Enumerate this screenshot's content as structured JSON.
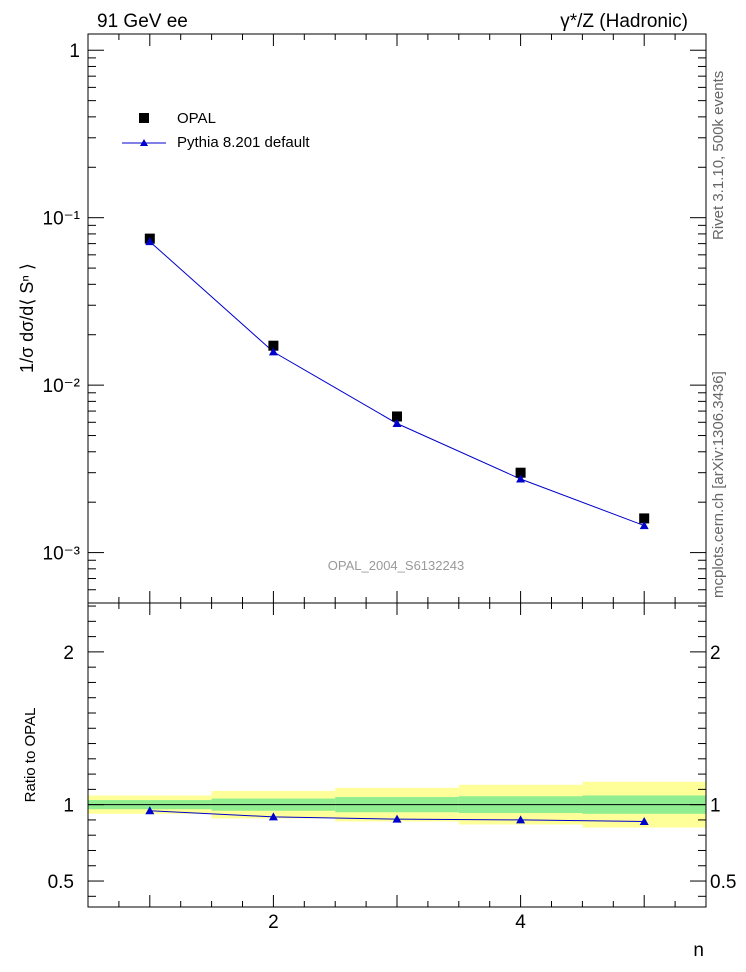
{
  "header": {
    "left_title": "91 GeV ee",
    "right_title": "γ*/Z (Hadronic)"
  },
  "side_labels": {
    "rivet": "Rivet 3.1.10,  500k events",
    "mcplots": "mcplots.cern.ch [arXiv:1306.3436]"
  },
  "watermark": "OPAL_2004_S6132243",
  "colors": {
    "data": "#000000",
    "mc": "#0000cc",
    "band_stat": "#90ee90",
    "band_total": "#ffff99"
  },
  "chart_data": [
    {
      "type": "scatter",
      "panel": "main",
      "ylabel": "1/σ dσ/d⟨ Sⁿ ⟩",
      "yscale": "log",
      "ylim": [
        0.0005,
        1.25
      ],
      "xlim": [
        0.5,
        5.5
      ],
      "y_tick_labels": [
        "10⁻³",
        "10⁻²",
        "10⁻¹",
        "1"
      ],
      "y_tick_values": [
        0.001,
        0.01,
        0.1,
        1
      ],
      "x": [
        1,
        2,
        3,
        4,
        5
      ],
      "series": [
        {
          "name": "OPAL",
          "marker": "square",
          "values": [
            0.075,
            0.0172,
            0.0065,
            0.003,
            0.0016
          ]
        },
        {
          "name": "Pythia 8.201 default",
          "marker": "triangle",
          "line": true,
          "values": [
            0.072,
            0.0158,
            0.0059,
            0.00275,
            0.00145
          ]
        }
      ],
      "legend": "top-left"
    },
    {
      "type": "line",
      "panel": "ratio",
      "ylabel": "Ratio to OPAL",
      "xlabel": "n",
      "ylim": [
        0.33,
        2.32
      ],
      "xlim": [
        0.5,
        5.5
      ],
      "x_tick_labels": [
        "2",
        "4"
      ],
      "x_tick_values": [
        2,
        4
      ],
      "y_tick_labels": [
        "0.5",
        "1",
        "2"
      ],
      "y_tick_values": [
        0.5,
        1,
        2
      ],
      "bins": [
        [
          0.5,
          1.5
        ],
        [
          1.5,
          2.5
        ],
        [
          2.5,
          3.5
        ],
        [
          3.5,
          4.5
        ],
        [
          4.5,
          5.5
        ]
      ],
      "band_stat": [
        0.03,
        0.04,
        0.05,
        0.055,
        0.06
      ],
      "band_total": [
        0.06,
        0.09,
        0.11,
        0.13,
        0.15
      ],
      "x": [
        1,
        2,
        3,
        4,
        5
      ],
      "values": [
        0.96,
        0.92,
        0.905,
        0.9,
        0.89
      ]
    }
  ]
}
